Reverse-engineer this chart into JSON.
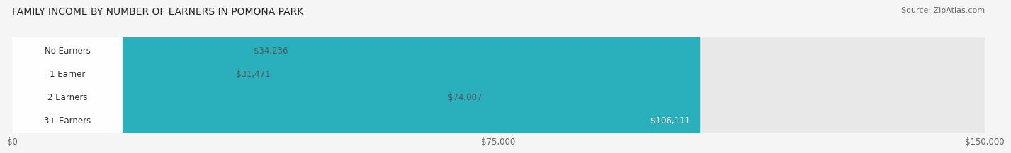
{
  "title": "FAMILY INCOME BY NUMBER OF EARNERS IN POMONA PARK",
  "source": "Source: ZipAtlas.com",
  "categories": [
    "No Earners",
    "1 Earner",
    "2 Earners",
    "3+ Earners"
  ],
  "values": [
    34236,
    31471,
    74007,
    106111
  ],
  "bar_colors": [
    "#e8a0a0",
    "#a8b8e0",
    "#b89acc",
    "#2ab0bc"
  ],
  "label_colors": [
    "#555555",
    "#555555",
    "#555555",
    "#ffffff"
  ],
  "bar_bg_color": "#e8e8e8",
  "value_labels": [
    "$34,236",
    "$31,471",
    "$74,007",
    "$106,111"
  ],
  "x_ticks": [
    0,
    75000,
    150000
  ],
  "x_tick_labels": [
    "$0",
    "$75,000",
    "$150,000"
  ],
  "xlim": [
    0,
    150000
  ],
  "fig_bg_color": "#f5f5f5",
  "bar_height": 0.62,
  "label_fontsize": 8.5,
  "title_fontsize": 10,
  "source_fontsize": 8
}
